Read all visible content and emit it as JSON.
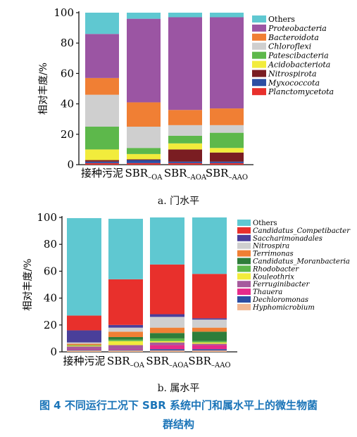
{
  "figure": {
    "caption_line1": "图 4    不同运行工况下 SBR 系统中门和属水平上的微生物菌",
    "caption_line2": "群结构"
  },
  "chart_data": [
    {
      "type": "bar",
      "stacked": true,
      "subtitle": "a. 门水平",
      "ylabel": "相对丰度/%",
      "ylim": [
        0,
        100
      ],
      "yticks": [
        0,
        20,
        40,
        60,
        80,
        100
      ],
      "categories": [
        {
          "main": "接种污泥",
          "sub": ""
        },
        {
          "main": "SBR",
          "sub": "–OA"
        },
        {
          "main": "SBR",
          "sub": "–AOA"
        },
        {
          "main": "SBR",
          "sub": "–AAO"
        }
      ],
      "legend_position": "top-right",
      "series": [
        {
          "name": "Planctomycetota",
          "color": "#e8302c",
          "values": [
            1,
            1,
            1,
            1
          ]
        },
        {
          "name": "Myxococcota",
          "color": "#2c4ea3",
          "values": [
            1,
            2,
            1,
            1
          ]
        },
        {
          "name": "Nitrospirota",
          "color": "#7a1d22",
          "values": [
            1,
            0.5,
            8,
            6
          ]
        },
        {
          "name": "Acidobacteriota",
          "color": "#f2ec3c",
          "values": [
            7,
            3.5,
            4,
            3
          ]
        },
        {
          "name": "Patescibacteria",
          "color": "#5db84b",
          "values": [
            15,
            4,
            5,
            10
          ]
        },
        {
          "name": "Chloroflexi",
          "color": "#cfcfcf",
          "values": [
            21,
            14,
            7,
            5
          ]
        },
        {
          "name": "Bacteroidota",
          "color": "#f07f34",
          "values": [
            11,
            16,
            10,
            11
          ]
        },
        {
          "name": "Proteobacteria",
          "color": "#9b55a3",
          "values": [
            29,
            55,
            61,
            60
          ]
        },
        {
          "name": "Others",
          "color": "#5fc8d1",
          "values": [
            14,
            4,
            3,
            3
          ]
        }
      ]
    },
    {
      "type": "bar",
      "stacked": true,
      "subtitle": "b. 属水平",
      "ylabel": "相对丰度/%",
      "ylim": [
        0,
        100
      ],
      "yticks": [
        0,
        20,
        40,
        60,
        80,
        100
      ],
      "categories": [
        {
          "main": "接种污泥",
          "sub": ""
        },
        {
          "main": "SBR",
          "sub": "–OA"
        },
        {
          "main": "SBR",
          "sub": "–AOA"
        },
        {
          "main": "SBR",
          "sub": "–AAO"
        }
      ],
      "legend_position": "top-right",
      "series": [
        {
          "name": "Hyphomicrobium",
          "color": "#f2b792",
          "values": [
            1,
            1,
            1,
            1
          ]
        },
        {
          "name": "Dechloromonas",
          "color": "#2c4ea3",
          "values": [
            0.5,
            0.5,
            1,
            1
          ]
        },
        {
          "name": "Thauera",
          "color": "#e62b8a",
          "values": [
            0.5,
            0.5,
            3,
            3
          ]
        },
        {
          "name": "Ferruginibacter",
          "color": "#a65a9d",
          "values": [
            2,
            3,
            2,
            1
          ]
        },
        {
          "name": "Kouleothrix",
          "color": "#f2ec3c",
          "values": [
            0.5,
            3,
            1,
            1
          ]
        },
        {
          "name": "Rhodobacter",
          "color": "#5db84b",
          "values": [
            0.5,
            1,
            2,
            1
          ]
        },
        {
          "name": "Candidatus_Moranbacteria",
          "color": "#2e7d3a",
          "values": [
            0,
            2,
            4,
            7
          ]
        },
        {
          "name": "Terrimonas",
          "color": "#f07f34",
          "values": [
            1,
            4,
            4,
            3
          ]
        },
        {
          "name": "Nitrospira",
          "color": "#cfcfcf",
          "values": [
            1,
            3,
            8,
            6
          ]
        },
        {
          "name": "Saccharimonadales",
          "color": "#4a3f9a",
          "values": [
            9,
            2,
            2,
            1
          ]
        },
        {
          "name": "Candidatus_Competibacter",
          "color": "#e8302c",
          "values": [
            11,
            34,
            37,
            33
          ]
        },
        {
          "name": "Others",
          "color": "#5fc8d1",
          "values": [
            72.5,
            45,
            35,
            42
          ]
        }
      ]
    }
  ]
}
